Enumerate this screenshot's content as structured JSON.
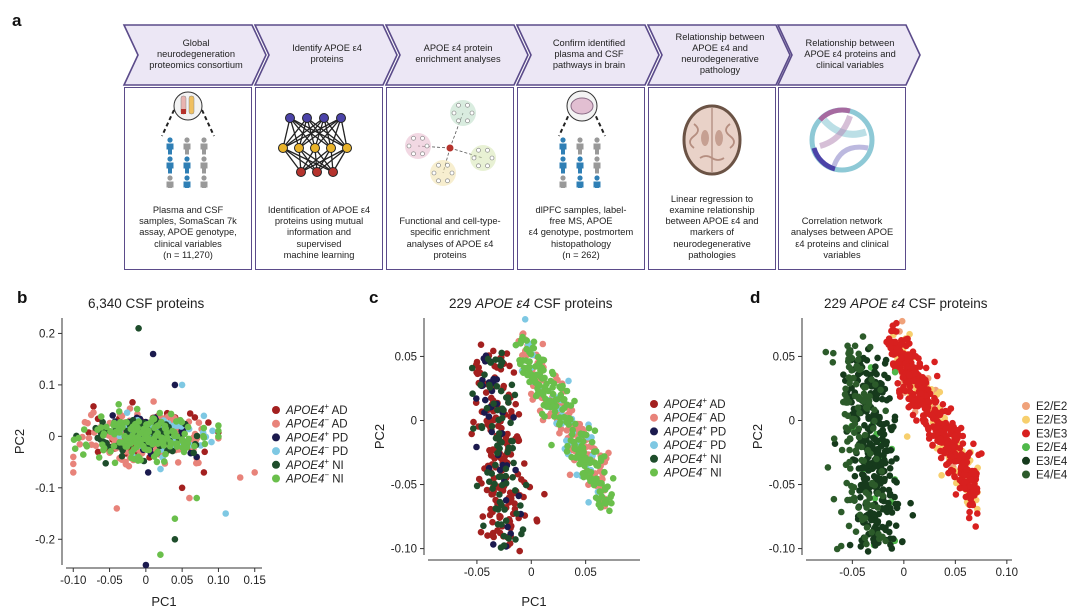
{
  "panel_labels": {
    "a": "a",
    "b": "b",
    "c": "c",
    "d": "d"
  },
  "workflow": {
    "steps": [
      {
        "header": [
          "Global",
          "neurodegeneration",
          "proteomics consortium"
        ],
        "icon": "plasma-csf-samples-icon",
        "body": [
          "Plasma and CSF",
          "samples, SomaScan 7k",
          "assay, APOE genotype,",
          "clinical variables"
        ],
        "n": "(n = 11,270)"
      },
      {
        "header": [
          "Identify APOE ε4",
          "proteins"
        ],
        "icon": "neural-network-icon",
        "body": [
          "Identification of APOE ε4",
          "proteins using mutual",
          "information and",
          "supervised",
          "machine learning"
        ],
        "n": ""
      },
      {
        "header": [
          "APOE ε4 protein",
          "enrichment analyses"
        ],
        "icon": "enrichment-network-icon",
        "body": [
          "Functional and cell-type-",
          "specific enrichment",
          "analyses of APOE ε4",
          "proteins"
        ],
        "n": ""
      },
      {
        "header": [
          "Confirm identified",
          "plasma and CSF",
          "pathways in brain"
        ],
        "icon": "brain-samples-icon",
        "body": [
          "dlPFC samples, label-",
          "free MS, APOE",
          "ε4 genotype, postmortem",
          "histopathology"
        ],
        "n": "(n = 262)"
      },
      {
        "header": [
          "Relationship between",
          "APOE ε4 and",
          "neurodegenerative",
          "pathology"
        ],
        "icon": "brain-section-icon",
        "body": [
          "Linear regression to",
          "examine relationship",
          "between APOE ε4 and",
          "markers of",
          "neurodegenerative",
          "pathologies"
        ],
        "n": ""
      },
      {
        "header": [
          "Relationship between",
          "APOE ε4 proteins and",
          "clinical variables"
        ],
        "icon": "chord-diagram-icon",
        "body": [
          "Correlation network",
          "analyses between APOE",
          "ε4 proteins and clinical",
          "variables"
        ],
        "n": ""
      }
    ]
  },
  "chart_data": [
    {
      "panel": "b",
      "type": "scatter",
      "title": "6,340 CSF proteins",
      "xlabel": "PC1",
      "ylabel": "PC2",
      "xlim": [
        -0.11,
        0.16
      ],
      "ylim": [
        -0.25,
        0.23
      ],
      "xticks": [
        "-0.10",
        "-0.05",
        "0",
        "0.05",
        "0.10",
        "0.15"
      ],
      "xtick_values": [
        -0.1,
        -0.05,
        0,
        0.05,
        0.1,
        0.15
      ],
      "yticks": [
        "0.2",
        "0.1",
        "0",
        "-0.1",
        "-0.2"
      ],
      "ytick_values": [
        0.2,
        0.1,
        0,
        -0.1,
        -0.2
      ],
      "legend_position": "right",
      "series": [
        {
          "name": "APOE4+ AD",
          "gene": "APOE4",
          "sup": "+",
          "label": "AD",
          "color": "#a3201f",
          "center": [
            0.0,
            0.0
          ],
          "spread": [
            0.035,
            0.02
          ],
          "count": 170,
          "outliers": [
            [
              0.05,
              -0.1
            ],
            [
              0.08,
              -0.07
            ]
          ]
        },
        {
          "name": "APOE4− AD",
          "gene": "APOE4",
          "sup": "−",
          "label": "AD",
          "color": "#e8837a",
          "center": [
            0.0,
            0.0
          ],
          "spread": [
            0.04,
            0.022
          ],
          "count": 170,
          "outliers": [
            [
              0.13,
              -0.08
            ],
            [
              0.15,
              -0.07
            ],
            [
              -0.1,
              -0.04
            ],
            [
              0.06,
              -0.12
            ],
            [
              -0.04,
              -0.14
            ]
          ]
        },
        {
          "name": "APOE4+ PD",
          "gene": "APOE4",
          "sup": "+",
          "label": "PD",
          "color": "#1b1a4e",
          "center": [
            0.01,
            0.0
          ],
          "spread": [
            0.03,
            0.018
          ],
          "count": 60,
          "outliers": [
            [
              0.0,
              -0.25
            ],
            [
              0.01,
              0.16
            ],
            [
              0.04,
              0.1
            ],
            [
              0.07,
              -0.04
            ]
          ]
        },
        {
          "name": "APOE4− PD",
          "gene": "APOE4",
          "sup": "−",
          "label": "PD",
          "color": "#7ec8e3",
          "center": [
            0.02,
            0.0
          ],
          "spread": [
            0.035,
            0.02
          ],
          "count": 70,
          "outliers": [
            [
              0.11,
              -0.15
            ],
            [
              0.05,
              0.1
            ],
            [
              0.08,
              0.04
            ]
          ]
        },
        {
          "name": "APOE4+ NI",
          "gene": "APOE4",
          "sup": "+",
          "label": "NI",
          "color": "#1e4d2b",
          "center": [
            -0.01,
            0.0
          ],
          "spread": [
            0.035,
            0.02
          ],
          "count": 90,
          "outliers": [
            [
              -0.01,
              0.21
            ],
            [
              0.04,
              -0.2
            ]
          ]
        },
        {
          "name": "APOE4− NI",
          "gene": "APOE4",
          "sup": "−",
          "label": "NI",
          "color": "#6abf4b",
          "center": [
            0.0,
            0.0
          ],
          "spread": [
            0.04,
            0.022
          ],
          "count": 160,
          "outliers": [
            [
              0.02,
              -0.23
            ],
            [
              0.07,
              -0.12
            ],
            [
              0.04,
              -0.16
            ]
          ]
        }
      ]
    },
    {
      "panel": "c",
      "type": "scatter",
      "title_gene": "APOE ε4",
      "title_prefix": "229 ",
      "title_suffix": " CSF proteins",
      "xlabel": "PC1",
      "ylabel": "PC2",
      "xlim": [
        -0.095,
        0.1
      ],
      "ylim": [
        -0.105,
        0.08
      ],
      "xticks": [
        "-0.05",
        "0",
        "0.05"
      ],
      "xtick_values": [
        -0.05,
        0,
        0.05
      ],
      "yticks": [
        "0.05",
        "0",
        "-0.05",
        "-0.10"
      ],
      "ytick_values": [
        0.05,
        0,
        -0.05,
        -0.1
      ],
      "legend_position": "right",
      "series": [
        {
          "name": "APOE4+ AD",
          "gene": "APOE4",
          "sup": "+",
          "label": "AD",
          "color": "#a3201f",
          "cluster": "left",
          "count": 170
        },
        {
          "name": "APOE4− AD",
          "gene": "APOE4",
          "sup": "−",
          "label": "AD",
          "color": "#e8837a",
          "cluster": "right",
          "count": 140
        },
        {
          "name": "APOE4+ PD",
          "gene": "APOE4",
          "sup": "+",
          "label": "PD",
          "color": "#1b1a4e",
          "cluster": "left",
          "count": 40
        },
        {
          "name": "APOE4− PD",
          "gene": "APOE4",
          "sup": "−",
          "label": "PD",
          "color": "#7ec8e3",
          "cluster": "right",
          "count": 50
        },
        {
          "name": "APOE4+ NI",
          "gene": "APOE4",
          "sup": "+",
          "label": "NI",
          "color": "#1e4d2b",
          "cluster": "left",
          "count": 80
        },
        {
          "name": "APOE4− NI",
          "gene": "APOE4",
          "sup": "−",
          "label": "NI",
          "color": "#6abf4b",
          "cluster": "right",
          "count": 190
        }
      ]
    },
    {
      "panel": "d",
      "type": "scatter",
      "title_gene": "APOE ε4",
      "title_prefix": "229 ",
      "title_suffix": " CSF proteins",
      "xlabel": "",
      "ylabel": "PC2",
      "xlim": [
        -0.095,
        0.105
      ],
      "ylim": [
        -0.105,
        0.08
      ],
      "xticks": [
        "-0.05",
        "0",
        "0.05",
        "0.10"
      ],
      "xtick_values": [
        -0.05,
        0,
        0.05,
        0.1
      ],
      "yticks": [
        "0.05",
        "0",
        "-0.05",
        "-0.10"
      ],
      "ytick_values": [
        0.05,
        0,
        -0.05,
        -0.1
      ],
      "legend_position": "right",
      "series": [
        {
          "name": "E2/E2",
          "label": "E2/E2",
          "color": "#f0a27a",
          "cluster": "right",
          "count": 30
        },
        {
          "name": "E2/E3",
          "label": "E2/E3",
          "color": "#f7cf6d",
          "cluster": "right",
          "count": 110
        },
        {
          "name": "E3/E3",
          "label": "E3/E3",
          "color": "#d8201f",
          "cluster": "right",
          "count": 380
        },
        {
          "name": "E2/E4",
          "label": "E2/E4",
          "color": "#4fb84a",
          "cluster": "left",
          "count": 20
        },
        {
          "name": "E3/E4",
          "label": "E3/E4",
          "color": "#163a1c",
          "cluster": "left",
          "count": 300
        },
        {
          "name": "E4/E4",
          "label": "E4/E4",
          "color": "#2c5b2a",
          "cluster": "leftfar",
          "count": 130
        }
      ]
    }
  ]
}
